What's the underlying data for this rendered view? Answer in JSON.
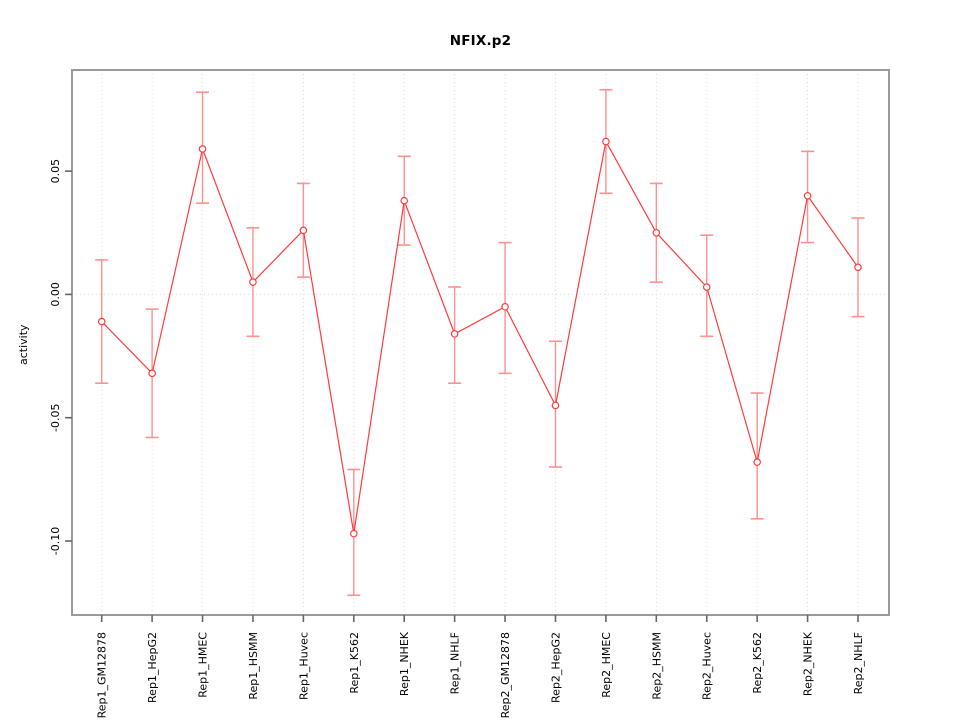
{
  "chart_data": {
    "type": "line",
    "title": "NFIX.p2",
    "xlabel": "",
    "ylabel": "activity",
    "legend_position": "none",
    "grid": "dotted vertical gridline at each category; dotted horizontal line at y=0",
    "marker": "open-circle with error bars",
    "categories": [
      "Rep1_GM12878",
      "Rep1_HepG2",
      "Rep1_HMEC",
      "Rep1_HSMM",
      "Rep1_Huvec",
      "Rep1_K562",
      "Rep1_NHEK",
      "Rep1_NHLF",
      "Rep2_GM12878",
      "Rep2_HepG2",
      "Rep2_HMEC",
      "Rep2_HSMM",
      "Rep2_Huvec",
      "Rep2_K562",
      "Rep2_NHEK",
      "Rep2_NHLF"
    ],
    "series": [
      {
        "name": "activity",
        "values": [
          -0.011,
          -0.032,
          0.059,
          0.005,
          0.026,
          -0.097,
          0.038,
          -0.016,
          -0.005,
          -0.045,
          0.062,
          0.025,
          0.003,
          -0.068,
          0.04,
          0.011
        ],
        "upper": [
          0.014,
          -0.006,
          0.082,
          0.027,
          0.045,
          -0.071,
          0.056,
          0.003,
          0.021,
          -0.019,
          0.083,
          0.045,
          0.024,
          -0.04,
          0.058,
          0.031
        ],
        "lower": [
          -0.036,
          -0.058,
          0.037,
          -0.017,
          0.007,
          -0.122,
          0.02,
          -0.036,
          -0.032,
          -0.07,
          0.041,
          0.005,
          -0.017,
          -0.091,
          0.021,
          -0.009
        ]
      }
    ],
    "ylim": [
      -0.13,
      0.091
    ],
    "yticks": {
      "values": [
        0.05,
        0.0,
        -0.05,
        -0.1
      ],
      "labels": [
        "0.05",
        "0.00",
        "-0.05",
        "-0.10"
      ]
    },
    "colors": {
      "line": "#ff3b3b",
      "error_bar": "#ff9090",
      "grid": "#dcdcdc",
      "axis_box": "#9a9a9a",
      "tick": "#666666",
      "text": "#000000",
      "background": "#ffffff"
    }
  }
}
